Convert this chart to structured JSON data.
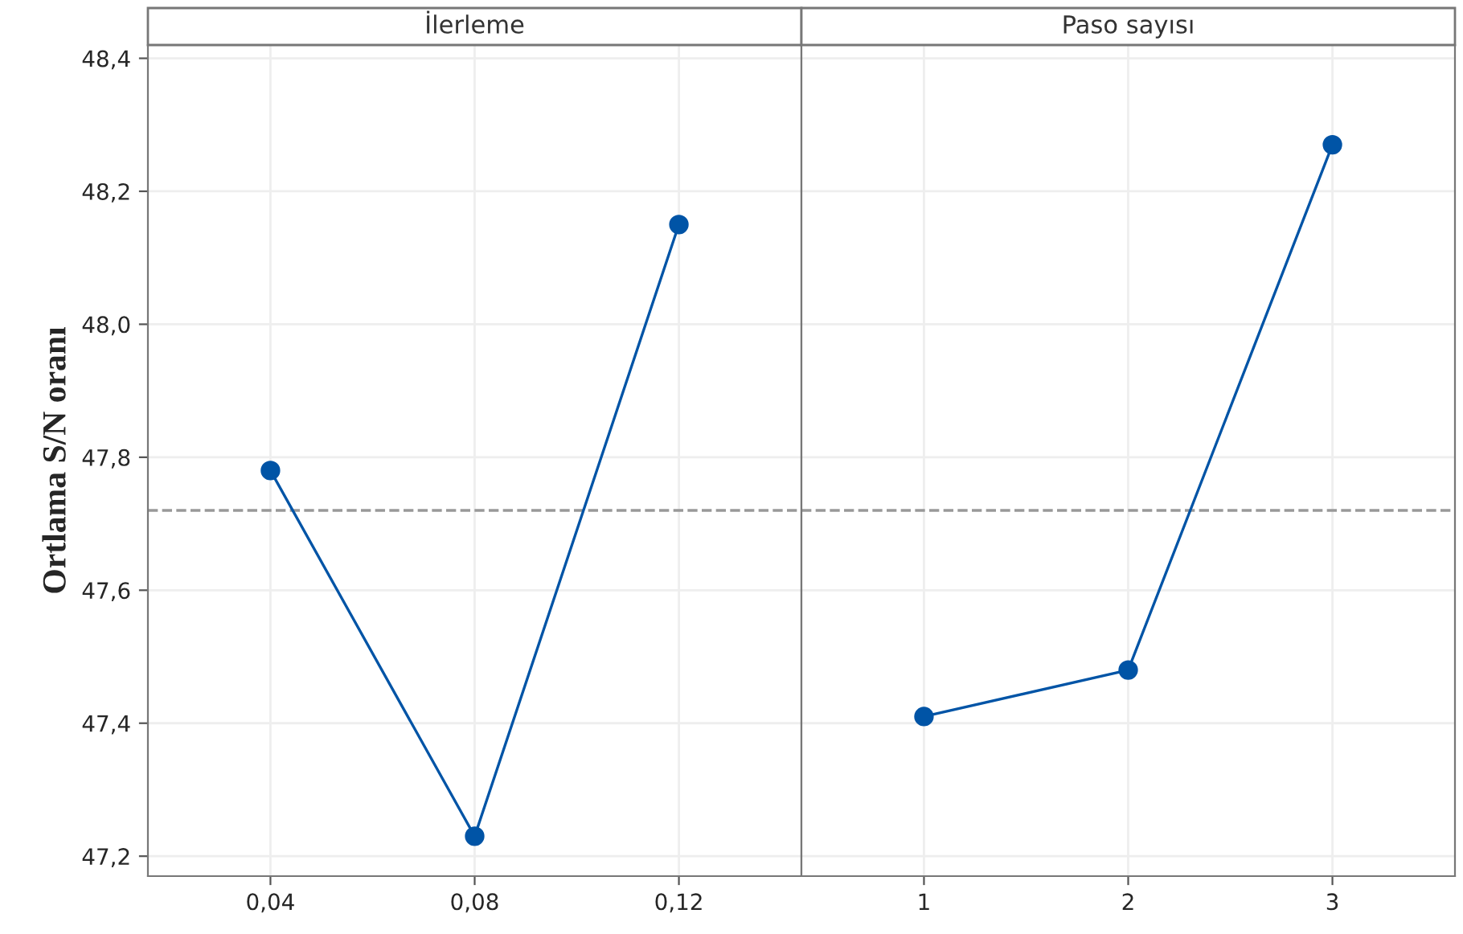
{
  "chart_data": [
    {
      "type": "line",
      "title": "İlerleme",
      "ylabel": "Ortlama S/N oranı",
      "categories": [
        "0,04",
        "0,08",
        "0,12"
      ],
      "series": [
        {
          "color": "#0054a6",
          "values": [
            47.78,
            47.23,
            48.15
          ]
        }
      ],
      "ylim": [
        47.17,
        48.42
      ],
      "yticks": [
        {
          "value": 47.2,
          "label": "47,2"
        },
        {
          "value": 47.4,
          "label": "47,4"
        },
        {
          "value": 47.6,
          "label": "47,6"
        },
        {
          "value": 47.8,
          "label": "47,8"
        },
        {
          "value": 48.0,
          "label": "48,0"
        },
        {
          "value": 48.2,
          "label": "48,2"
        },
        {
          "value": 48.4,
          "label": "48,4"
        }
      ],
      "ref_lines": [
        {
          "axis": "y",
          "value": 47.72,
          "color": "#999999",
          "line_style": "dashed"
        }
      ],
      "grid": true,
      "marker": "circle",
      "line_style": "solid"
    },
    {
      "type": "line",
      "title": "Paso sayısı",
      "categories": [
        "1",
        "2",
        "3"
      ],
      "series": [
        {
          "color": "#0054a6",
          "values": [
            47.41,
            47.48,
            48.27
          ]
        }
      ],
      "ylim": [
        47.17,
        48.42
      ],
      "ref_lines": [
        {
          "axis": "y",
          "value": 47.72,
          "color": "#999999",
          "line_style": "dashed"
        }
      ],
      "grid": true,
      "marker": "circle",
      "line_style": "solid",
      "tick_labels": "x"
    }
  ]
}
